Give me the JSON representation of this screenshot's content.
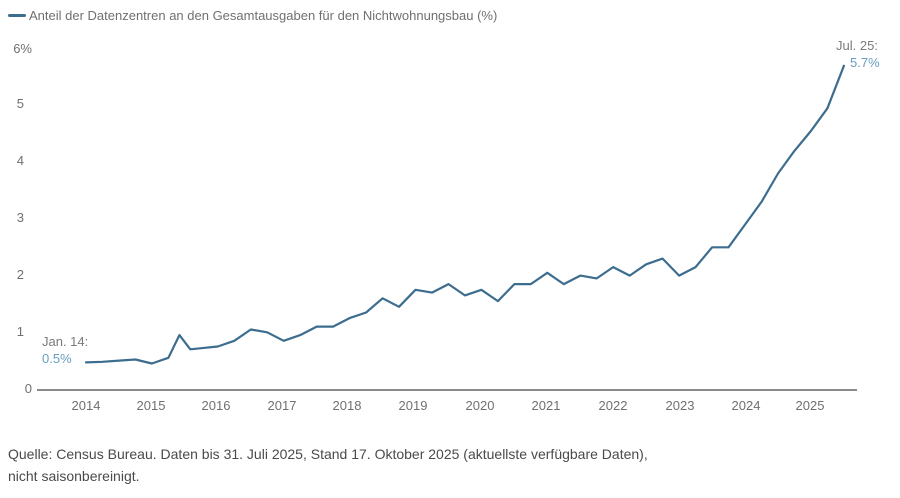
{
  "legend": {
    "label": "Anteil der Datenzentren an den Gesamtausgaben für den Nichtwohnungsbau (%)",
    "color": "#3d6d8e"
  },
  "y_axis": {
    "ticks": [
      "0",
      "1",
      "2",
      "3",
      "4",
      "5",
      "6%"
    ]
  },
  "x_axis": {
    "ticks": [
      "2014",
      "2015",
      "2016",
      "2017",
      "2018",
      "2019",
      "2020",
      "2021",
      "2022",
      "2023",
      "2024",
      "2025"
    ]
  },
  "annotations": {
    "start": {
      "date": "Jan. 14:",
      "value": "0.5%"
    },
    "end": {
      "date": "Jul. 25:",
      "value": "5.7%"
    }
  },
  "source": {
    "line1": "Quelle: Census Bureau. Daten bis 31. Juli 2025, Stand 17. Oktober 2025 (aktuellste verfügbare Daten),",
    "line2": "nicht saisonbereinigt."
  },
  "chart_data": {
    "type": "line",
    "title": "Anteil der Datenzentren an den Gesamtausgaben für den Nichtwohnungsbau (%)",
    "xlabel": "",
    "ylabel": "%",
    "ylim": [
      0,
      6
    ],
    "xlim": [
      "2014-01",
      "2025-07"
    ],
    "grid": false,
    "legend_position": "top-left",
    "series": [
      {
        "name": "Anteil der Datenzentren an den Gesamtausgaben für den Nichtwohnungsbau (%)",
        "color": "#3d6d8e",
        "x": [
          "2014-01",
          "2014-04",
          "2014-07",
          "2014-10",
          "2015-01",
          "2015-04",
          "2015-06",
          "2015-08",
          "2015-10",
          "2016-01",
          "2016-04",
          "2016-07",
          "2016-10",
          "2017-01",
          "2017-04",
          "2017-07",
          "2017-10",
          "2018-01",
          "2018-04",
          "2018-07",
          "2018-10",
          "2019-01",
          "2019-04",
          "2019-07",
          "2019-10",
          "2020-01",
          "2020-04",
          "2020-07",
          "2020-10",
          "2021-01",
          "2021-04",
          "2021-07",
          "2021-10",
          "2022-01",
          "2022-04",
          "2022-07",
          "2022-10",
          "2023-01",
          "2023-04",
          "2023-07",
          "2023-10",
          "2024-01",
          "2024-04",
          "2024-07",
          "2024-10",
          "2025-01",
          "2025-04",
          "2025-07"
        ],
        "values": [
          0.47,
          0.48,
          0.5,
          0.52,
          0.45,
          0.55,
          0.95,
          0.7,
          0.72,
          0.75,
          0.85,
          1.05,
          1.0,
          0.85,
          0.95,
          1.1,
          1.1,
          1.25,
          1.35,
          1.6,
          1.45,
          1.75,
          1.7,
          1.85,
          1.65,
          1.75,
          1.55,
          1.85,
          1.85,
          2.05,
          1.85,
          2.0,
          1.95,
          2.15,
          2.0,
          2.2,
          2.3,
          2.0,
          2.15,
          2.5,
          2.5,
          2.9,
          3.3,
          3.8,
          4.2,
          4.55,
          4.95,
          5.7
        ]
      }
    ],
    "annotations": [
      {
        "x": "2014-01",
        "text": "Jan. 14: 0.5%"
      },
      {
        "x": "2025-07",
        "text": "Jul. 25: 5.7%"
      }
    ]
  }
}
